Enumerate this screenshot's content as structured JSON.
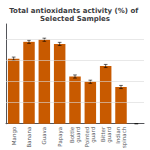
{
  "chart_data": {
    "type": "bar",
    "title": "Total antioxidants activity (%) of Selected Samples",
    "categories": [
      "Mango",
      "Banana",
      "Guava",
      "Papaya",
      "Bottle\nguard",
      "Pointed\nguard",
      "Bitter\nguard",
      "Indian\nspinach",
      null
    ],
    "values": [
      62,
      78,
      80,
      76,
      45,
      40,
      55,
      35,
      0
    ],
    "errors": [
      1.5,
      1.5,
      1.5,
      1.5,
      1.5,
      1.5,
      1.5,
      1.5,
      0
    ],
    "color": "#C85A00",
    "ylim": [
      0,
      95
    ],
    "yticks": [
      20,
      40,
      60,
      80
    ],
    "grid": true,
    "tick_labels": "x"
  }
}
